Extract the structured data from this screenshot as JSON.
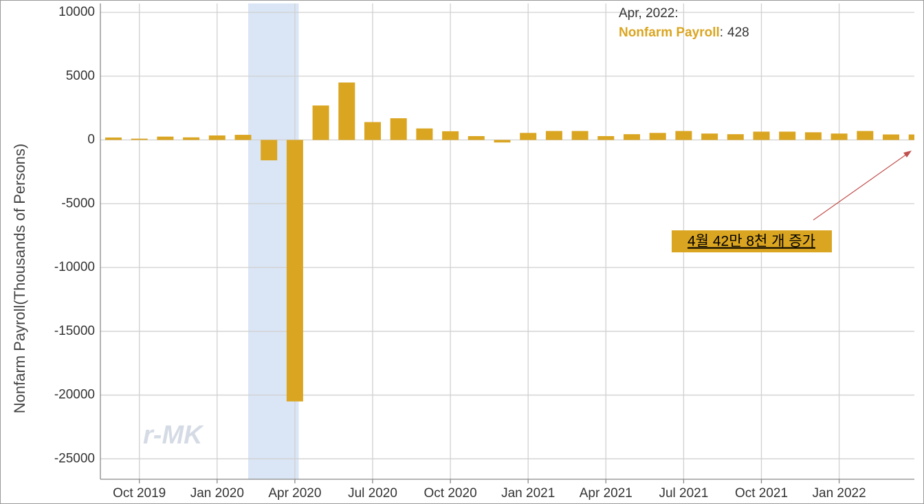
{
  "chart_data": {
    "type": "bar",
    "y_label": "Nonfarm Payroll(Thousands of Persons)",
    "categories": [
      null,
      "Oct 2019",
      null,
      null,
      "Jan 2020",
      null,
      null,
      "Apr 2020",
      null,
      null,
      "Jul 2020",
      null,
      null,
      "Oct 2020",
      null,
      null,
      "Jan 2021",
      null,
      null,
      "Apr 2021",
      null,
      null,
      "Jul 2021",
      null,
      null,
      "Oct 2021",
      null,
      null,
      "Jan 2022",
      null,
      null,
      null
    ],
    "series": [
      {
        "name": "Nonfarm Payroll",
        "color": "#daa520",
        "values": [
          190,
          100,
          260,
          200,
          350,
          400,
          -1600,
          -20500,
          2700,
          4500,
          1400,
          1700,
          900,
          680,
          300,
          -200,
          550,
          700,
          700,
          300,
          450,
          550,
          700,
          500,
          450,
          650,
          650,
          600,
          500,
          700,
          430,
          428
        ]
      }
    ],
    "ylim": [
      -26600,
      10700
    ],
    "yticks": [
      -25000,
      -20000,
      -15000,
      -10000,
      -5000,
      0,
      5000,
      10000
    ],
    "grid": true,
    "tooltip": {
      "header": "Apr, 2022:",
      "series_name": "Nonfarm Payroll",
      "separator": ":",
      "value": 428
    },
    "annotation": "4월 42만 8천 개 증가",
    "watermark": "r-MK"
  }
}
